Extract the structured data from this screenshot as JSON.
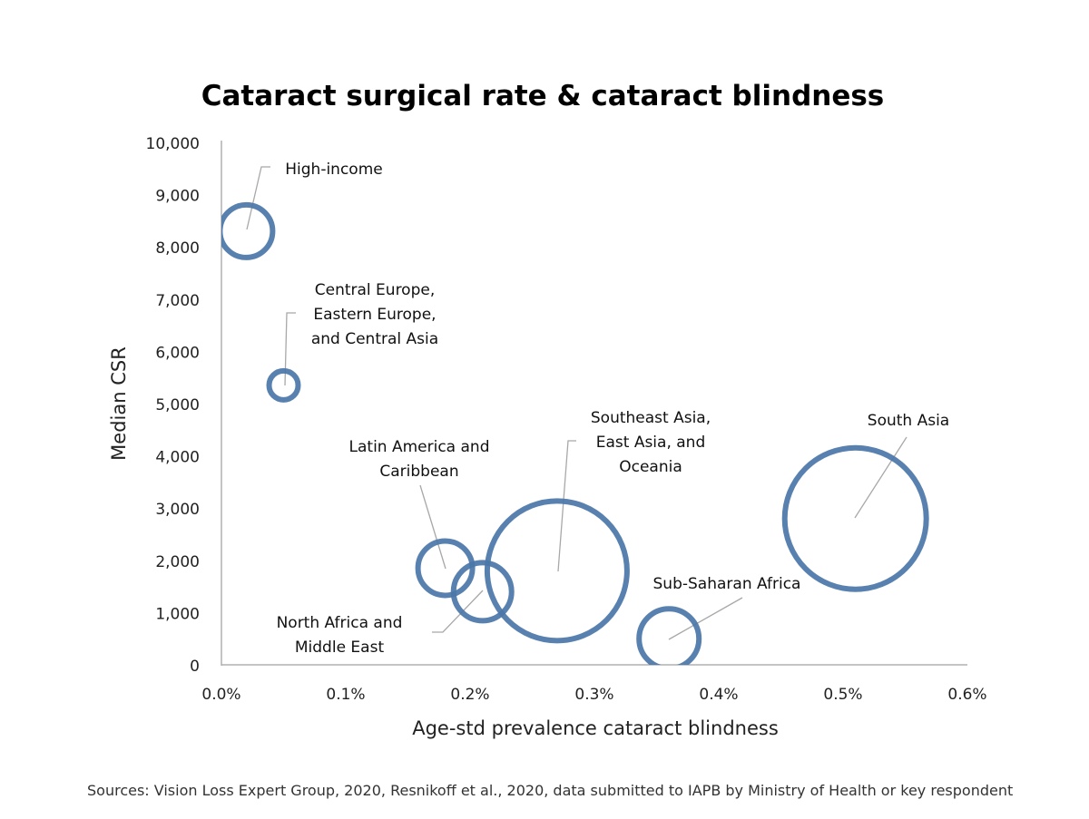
{
  "chart_data": {
    "type": "scatter",
    "subtype": "bubble",
    "title": "Cataract surgical rate & cataract blindness",
    "xlabel": "Age-std prevalence cataract blindness",
    "ylabel": "Median CSR",
    "xlim": [
      0,
      0.6
    ],
    "ylim": [
      0,
      10000
    ],
    "xticks": [
      0,
      0.1,
      0.2,
      0.3,
      0.4,
      0.5,
      0.6
    ],
    "xtick_labels": [
      "0.0%",
      "0.1%",
      "0.2%",
      "0.3%",
      "0.4%",
      "0.5%",
      "0.6%"
    ],
    "yticks": [
      0,
      1000,
      2000,
      3000,
      4000,
      5000,
      6000,
      7000,
      8000,
      9000,
      10000
    ],
    "ytick_labels": [
      "0",
      "1,000",
      "2,000",
      "3,000",
      "4,000",
      "5,000",
      "6,000",
      "7,000",
      "8,000",
      "9,000",
      "10,000"
    ],
    "grid": false,
    "bubble_color": "#4a76a8",
    "points": [
      {
        "name": "High-income",
        "label_lines": [
          "High-income"
        ],
        "x": 0.02,
        "y": 8300,
        "size": 29
      },
      {
        "name": "Central Europe, Eastern Europe, and Central Asia",
        "label_lines": [
          "Central Europe,",
          "Eastern Europe,",
          "and Central Asia"
        ],
        "x": 0.05,
        "y": 5350,
        "size": 16
      },
      {
        "name": "Latin America and Caribbean",
        "label_lines": [
          "Latin America and",
          "Caribbean"
        ],
        "x": 0.18,
        "y": 1850,
        "size": 30
      },
      {
        "name": "North Africa and Middle East",
        "label_lines": [
          "North Africa and",
          "Middle East"
        ],
        "x": 0.21,
        "y": 1400,
        "size": 32
      },
      {
        "name": "Southeast Asia, East Asia, and Oceania",
        "label_lines": [
          "Southeast Asia,",
          "East Asia, and",
          "Oceania"
        ],
        "x": 0.27,
        "y": 1800,
        "size": 77
      },
      {
        "name": "Sub-Saharan Africa",
        "label_lines": [
          "Sub-Saharan Africa"
        ],
        "x": 0.36,
        "y": 500,
        "size": 33
      },
      {
        "name": "South Asia",
        "label_lines": [
          "South Asia"
        ],
        "x": 0.51,
        "y": 2800,
        "size": 78
      }
    ]
  },
  "source": "Sources: Vision Loss Expert Group, 2020, Resnikoff et al., 2020, data submitted to IAPB by Ministry of Health or key respondent"
}
